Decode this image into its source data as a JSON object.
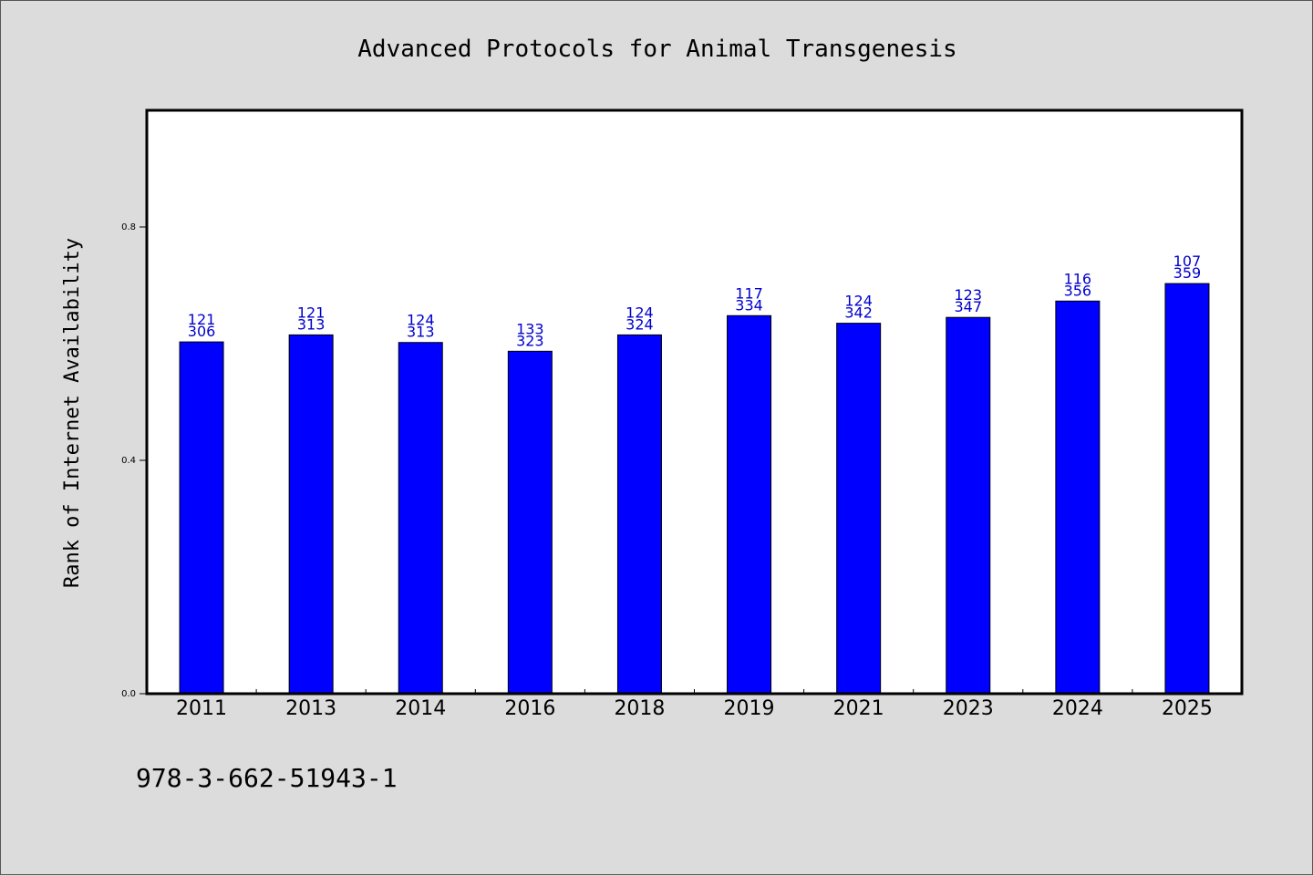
{
  "chart_data": {
    "type": "bar",
    "title": "Advanced Protocols for Animal Transgenesis",
    "ylabel": "Rank of Internet Availability",
    "xlabel": "",
    "ylim": [
      0,
      1.0
    ],
    "yticks": [
      0.0,
      0.4,
      0.8
    ],
    "ytick_labels": [
      "0.0",
      "0.4",
      "0.8"
    ],
    "grid": false,
    "bar_color": "#0000ff",
    "label_color": "#0000cc",
    "categories": [
      "2011",
      "2013",
      "2014",
      "2016",
      "2018",
      "2019",
      "2021",
      "2023",
      "2024",
      "2025"
    ],
    "values": [
      0.603,
      0.615,
      0.602,
      0.587,
      0.615,
      0.648,
      0.635,
      0.645,
      0.673,
      0.703
    ],
    "label_top": [
      "121",
      "121",
      "124",
      "133",
      "124",
      "117",
      "124",
      "123",
      "116",
      "107"
    ],
    "label_bottom": [
      "306",
      "313",
      "313",
      "323",
      "324",
      "334",
      "342",
      "347",
      "356",
      "359"
    ]
  },
  "footer": {
    "isbn": "978-3-662-51943-1"
  }
}
